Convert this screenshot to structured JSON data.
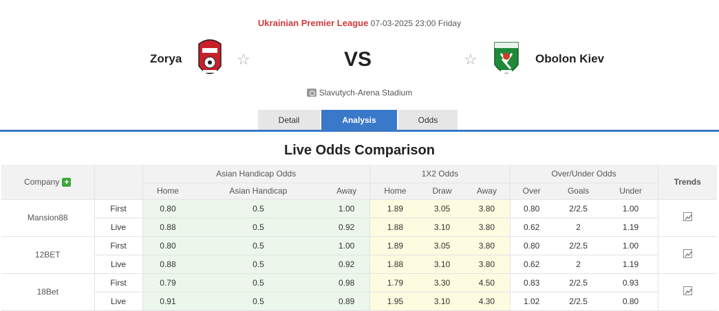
{
  "match": {
    "league": "Ukrainian Premier League",
    "datetime": "07-03-2025 23:00 Friday",
    "home_team": "Zorya",
    "away_team": "Obolon Kiev",
    "vs_label": "VS",
    "stadium": "Slavutych-Arena Stadium"
  },
  "tabs": [
    "Detail",
    "Analysis",
    "Odds"
  ],
  "section_title": "Live Odds Comparison",
  "table": {
    "company_header": "Company",
    "groups": [
      "Asian Handicap Odds",
      "1X2 Odds",
      "Over/Under Odds"
    ],
    "trends_header": "Trends",
    "subheaders": [
      "Home",
      "Asian Handicap",
      "Away",
      "Home",
      "Draw",
      "Away",
      "Over",
      "Goals",
      "Under"
    ],
    "companies": [
      {
        "name": "Mansion88",
        "rows": [
          {
            "type": "First",
            "values": [
              "0.80",
              "0.5",
              "1.00",
              "1.89",
              "3.05",
              "3.80",
              "0.80",
              "2/2.5",
              "1.00"
            ]
          },
          {
            "type": "Live",
            "values": [
              "0.88",
              "0.5",
              "0.92",
              "1.88",
              "3.10",
              "3.80",
              "0.62",
              "2",
              "1.19"
            ]
          }
        ]
      },
      {
        "name": "12BET",
        "rows": [
          {
            "type": "First",
            "values": [
              "0.80",
              "0.5",
              "1.00",
              "1.89",
              "3.05",
              "3.80",
              "0.80",
              "2/2.5",
              "1.00"
            ]
          },
          {
            "type": "Live",
            "values": [
              "0.88",
              "0.5",
              "0.92",
              "1.88",
              "3.10",
              "3.80",
              "0.62",
              "2",
              "1.19"
            ]
          }
        ]
      },
      {
        "name": "18Bet",
        "rows": [
          {
            "type": "First",
            "values": [
              "0.79",
              "0.5",
              "0.98",
              "1.79",
              "3.30",
              "4.50",
              "0.83",
              "2/2.5",
              "0.93"
            ]
          },
          {
            "type": "Live",
            "values": [
              "0.91",
              "0.5",
              "0.89",
              "1.95",
              "3.10",
              "4.30",
              "1.02",
              "2/2.5",
              "0.80"
            ]
          }
        ]
      }
    ]
  },
  "colors": {
    "accent": "#3a78c9",
    "league": "#cf3b3b",
    "ah_bg": "#eaf7ea",
    "x12_bg": "#fdfbe0",
    "home_logo": "#c8202a",
    "away_logo": "#1f8a3a"
  },
  "icons": {
    "favorite": "star-icon",
    "stadium": "stadium-icon",
    "add": "plus-icon",
    "trend": "chart-icon"
  }
}
